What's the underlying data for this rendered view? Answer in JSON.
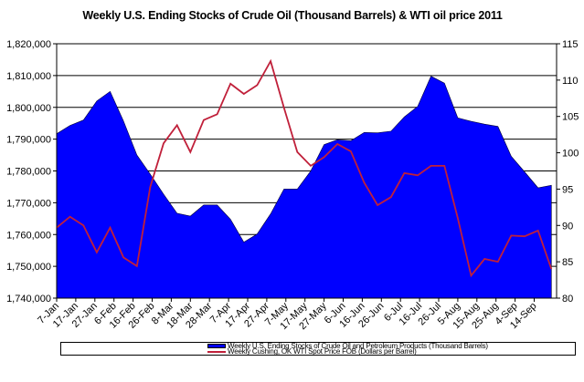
{
  "chart_data": {
    "type": "area+line",
    "title": "Weekly U.S. Ending Stocks of Crude Oil  (Thousand Barrels) & WTI oil price 2011",
    "x_tick_labels": [
      "7-Jan",
      "17-Jan",
      "27-Jan",
      "6-Feb",
      "16-Feb",
      "26-Feb",
      "8-Mar",
      "18-Mar",
      "28-Mar",
      "7-Apr",
      "17-Apr",
      "27-Apr",
      "7-May",
      "17-May",
      "27-May",
      "6-Jun",
      "16-Jun",
      "26-Jun",
      "6-Jul",
      "16-Jul",
      "26-Jul",
      "5-Aug",
      "15-Aug",
      "25-Aug",
      "4-Sep",
      "14-Sep"
    ],
    "x_tick_interval_days": 10,
    "x_start": "7-Jan",
    "point_interval_days": 7,
    "y_left": {
      "label": "",
      "range": [
        1740000,
        1820000
      ],
      "ticks": [
        "1,740,000",
        "1,750,000",
        "1,760,000",
        "1,770,000",
        "1,780,000",
        "1,790,000",
        "1,800,000",
        "1,810,000",
        "1,820,000"
      ],
      "tick_values": [
        1740000,
        1750000,
        1760000,
        1770000,
        1780000,
        1790000,
        1800000,
        1810000,
        1820000
      ]
    },
    "y_right": {
      "label": "",
      "range": [
        80,
        115
      ],
      "ticks": [
        "80",
        "85",
        "90",
        "95",
        "100",
        "105",
        "110",
        "115"
      ],
      "tick_values": [
        80,
        85,
        90,
        95,
        100,
        105,
        110,
        115
      ]
    },
    "grid": "horizontal",
    "legend_position": "bottom",
    "series": [
      {
        "name": "Weekly U.S. Ending Stocks of Crude Oil and Petroleum Products  (Thousand Barrels)",
        "kind": "area",
        "axis": "left",
        "color": "#0000ff",
        "values": [
          1791700,
          1794300,
          1796000,
          1802000,
          1805000,
          1795700,
          1785000,
          1779000,
          1772700,
          1766700,
          1765800,
          1769300,
          1769300,
          1764800,
          1757600,
          1760200,
          1766500,
          1774300,
          1774300,
          1780000,
          1788300,
          1789800,
          1789500,
          1792100,
          1792000,
          1792500,
          1797000,
          1800300,
          1809800,
          1807600,
          1796700,
          1795600,
          1794700,
          1794000,
          1784600,
          1779700,
          1774700,
          1775500
        ]
      },
      {
        "name": "Weekly Cushing, OK WTI Spot Price FOB  (Dollars per Barrel)",
        "kind": "line",
        "axis": "right",
        "color": "#c0203a",
        "values": [
          89.7,
          91.2,
          90.0,
          86.3,
          89.7,
          85.6,
          84.4,
          95.3,
          101.3,
          103.8,
          100.1,
          104.5,
          105.3,
          109.5,
          108.1,
          109.3,
          112.6,
          106.2,
          100.1,
          98.2,
          99.4,
          101.2,
          100.2,
          95.9,
          92.8,
          93.9,
          97.2,
          96.9,
          98.2,
          98.2,
          91.0,
          83.1,
          85.4,
          85.0,
          88.6,
          88.5,
          89.3,
          84.0
        ]
      }
    ]
  }
}
